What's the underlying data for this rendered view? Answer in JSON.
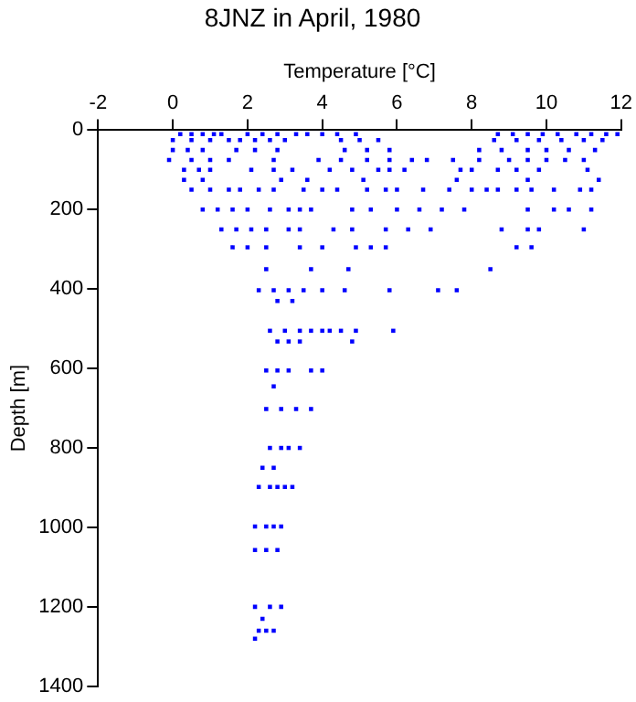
{
  "chart_data": {
    "type": "scatter",
    "title": "8JNZ in April, 1980",
    "xlabel": "Temperature [°C]",
    "ylabel": "Depth [m]",
    "xlim": [
      -2,
      12
    ],
    "xticks": [
      -2,
      0,
      2,
      4,
      6,
      8,
      10,
      12
    ],
    "ylim": [
      1400,
      0
    ],
    "yticks": [
      0,
      200,
      400,
      600,
      800,
      1000,
      1200,
      1400
    ],
    "grid": false,
    "marker": "square",
    "series": [
      {
        "color": "#0000ff",
        "x": [
          0.2,
          0.5,
          0.8,
          1.1,
          1.3,
          2.0,
          2.4,
          2.8,
          3.3,
          3.6,
          4.0,
          4.4,
          4.9,
          8.7,
          9.1,
          9.5,
          9.9,
          10.3,
          10.8,
          11.2,
          11.6,
          11.9,
          0,
          0.5,
          1.0,
          1.5,
          1.8,
          2.2,
          2.6,
          3.0,
          4.5,
          5.0,
          5.5,
          8.6,
          9.2,
          9.8,
          10.4,
          11.0,
          11.5,
          0,
          0.4,
          0.8,
          1.7,
          2.2,
          2.8,
          4.6,
          5.2,
          5.8,
          8.2,
          8.8,
          9.5,
          10.0,
          10.6,
          11.3,
          -0.1,
          0.5,
          1.0,
          1.5,
          2.7,
          3.9,
          4.5,
          5.2,
          5.8,
          6.4,
          6.8,
          7.5,
          8.2,
          9.0,
          9.5,
          10.0,
          10.5,
          11.0,
          0.3,
          0.7,
          1.0,
          2.1,
          2.7,
          3.2,
          4.2,
          4.8,
          5.5,
          5.8,
          6.2,
          7.7,
          8.0,
          8.7,
          9.2,
          9.8,
          11.1,
          0.3,
          0.8,
          2.9,
          3.6,
          5.1,
          7.6,
          9.5,
          11.4,
          0.5,
          1.0,
          1.5,
          1.8,
          2.3,
          2.7,
          3.5,
          4.0,
          4.4,
          5.2,
          5.7,
          6.0,
          6.7,
          7.4,
          8.0,
          8.4,
          8.7,
          9.2,
          9.6,
          10.2,
          10.9,
          11.2,
          0.8,
          1.2,
          1.6,
          2.0,
          2.6,
          3.1,
          3.4,
          3.7,
          4.8,
          5.3,
          6.0,
          6.6,
          7.2,
          7.8,
          9.5,
          10.2,
          10.6,
          11.2,
          1.3,
          1.7,
          2.1,
          2.5,
          3.1,
          3.4,
          4.3,
          4.8,
          5.7,
          6.3,
          6.9,
          8.8,
          9.5,
          9.8,
          11.0,
          1.6,
          2.0,
          2.5,
          3.4,
          4.0,
          4.9,
          5.3,
          5.7,
          9.2,
          9.6,
          2.5,
          3.7,
          4.7,
          8.5,
          2.3,
          2.7,
          3.1,
          3.5,
          4.0,
          4.6,
          5.8,
          7.1,
          7.6,
          2.8,
          3.2,
          2.6,
          3.0,
          3.4,
          3.7,
          4.0,
          4.2,
          4.5,
          4.9,
          5.9,
          2.8,
          3.1,
          3.4,
          4.8,
          2.5,
          2.8,
          3.1,
          3.7,
          4.0,
          2.7,
          2.5,
          2.9,
          3.3,
          3.7,
          2.6,
          2.9,
          3.1,
          3.4,
          2.4,
          2.7,
          2.3,
          2.6,
          2.8,
          3.0,
          3.2,
          2.2,
          2.5,
          2.7,
          2.9,
          2.2,
          2.5,
          2.8,
          2.2,
          2.6,
          2.9,
          2.4,
          2.3,
          2.5,
          2.7,
          2.2
        ],
        "values": [
          10,
          10,
          10,
          10,
          10,
          10,
          10,
          10,
          10,
          10,
          10,
          10,
          10,
          10,
          10,
          10,
          10,
          10,
          10,
          10,
          10,
          10,
          25,
          25,
          25,
          25,
          25,
          25,
          25,
          25,
          25,
          25,
          25,
          25,
          25,
          25,
          25,
          25,
          25,
          50,
          50,
          50,
          50,
          50,
          50,
          50,
          50,
          50,
          50,
          50,
          50,
          50,
          50,
          50,
          75,
          75,
          75,
          75,
          75,
          75,
          75,
          75,
          75,
          75,
          75,
          75,
          75,
          75,
          75,
          75,
          75,
          75,
          100,
          100,
          100,
          100,
          100,
          100,
          100,
          100,
          100,
          100,
          100,
          100,
          100,
          100,
          100,
          100,
          100,
          125,
          125,
          125,
          125,
          125,
          125,
          125,
          125,
          150,
          150,
          150,
          150,
          150,
          150,
          150,
          150,
          150,
          150,
          150,
          150,
          150,
          150,
          150,
          150,
          150,
          150,
          150,
          150,
          150,
          150,
          200,
          200,
          200,
          200,
          200,
          200,
          200,
          200,
          200,
          200,
          200,
          200,
          200,
          200,
          200,
          200,
          200,
          200,
          250,
          250,
          250,
          250,
          250,
          250,
          250,
          250,
          250,
          250,
          250,
          250,
          250,
          250,
          250,
          295,
          295,
          295,
          295,
          295,
          295,
          295,
          295,
          295,
          295,
          350,
          350,
          350,
          350,
          403,
          403,
          403,
          403,
          403,
          403,
          403,
          403,
          403,
          430,
          430,
          505,
          505,
          505,
          505,
          505,
          505,
          505,
          505,
          505,
          532,
          532,
          532,
          532,
          605,
          605,
          605,
          605,
          605,
          645,
          702,
          702,
          702,
          702,
          800,
          800,
          800,
          800,
          850,
          850,
          898,
          898,
          898,
          898,
          898,
          998,
          998,
          998,
          998,
          1057,
          1057,
          1057,
          1200,
          1200,
          1200,
          1230,
          1260,
          1260,
          1260,
          1280
        ]
      }
    ]
  }
}
